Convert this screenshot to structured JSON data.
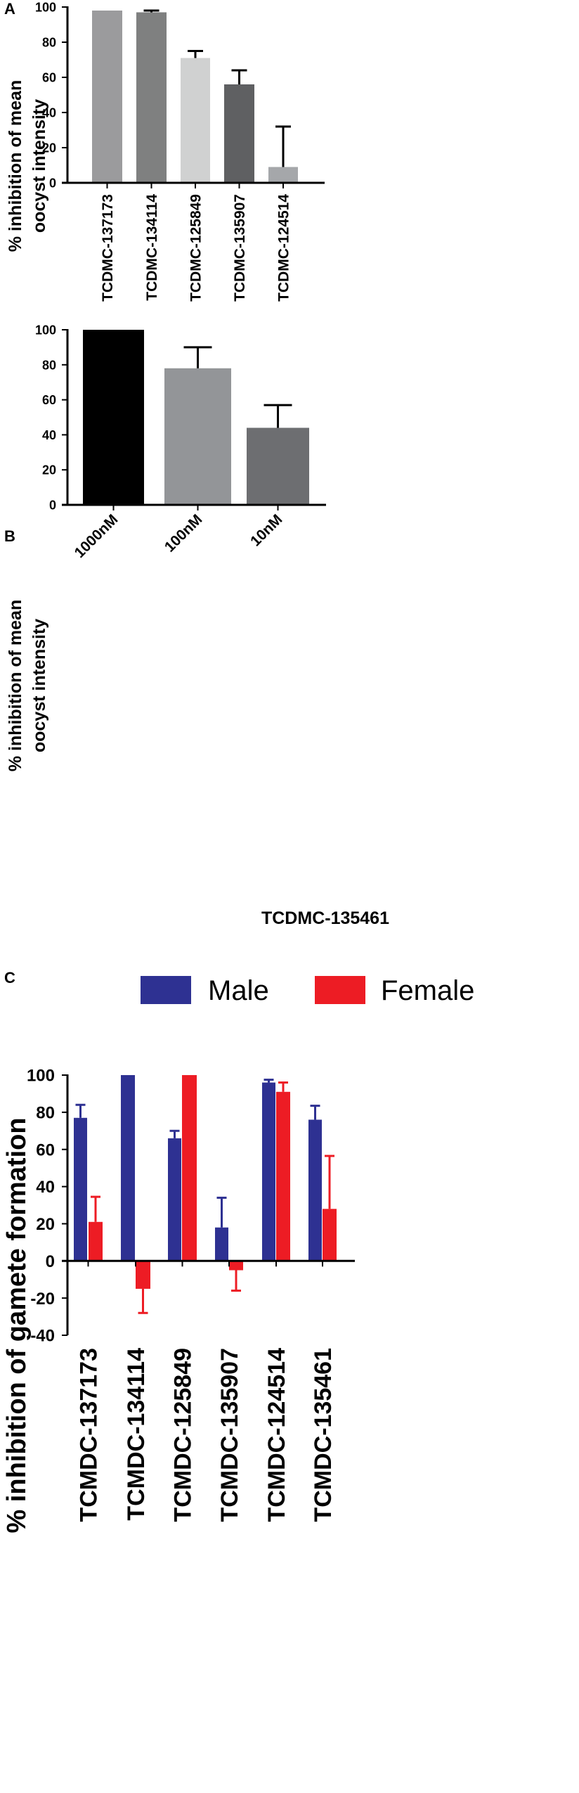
{
  "chart_data": [
    {
      "panel_label": "A",
      "type": "bar",
      "ylabel_lines": [
        "% inhibition of mean",
        "oocyst intensity"
      ],
      "xlabel": "",
      "ylim": [
        0,
        100
      ],
      "yticks": [
        0,
        20,
        40,
        60,
        80,
        100
      ],
      "categories": [
        "TCDMC-137173",
        "TCDMC-134114",
        "TCDMC-125849",
        "TCDMC-135907",
        "TCDMC-124514"
      ],
      "values": [
        98,
        97,
        71,
        56,
        9
      ],
      "errors": [
        0,
        1,
        4,
        8,
        23
      ],
      "colors": [
        "#9b9b9d",
        "#7f8080",
        "#d0d1d1",
        "#5f6062",
        "#a5a7aa"
      ]
    },
    {
      "panel_label": "B",
      "type": "bar",
      "ylabel_lines": [
        "% inhibition of mean",
        "oocyst intensity"
      ],
      "xlabel": "TCDMC-135461",
      "ylim": [
        0,
        100
      ],
      "yticks": [
        0,
        20,
        40,
        60,
        80,
        100
      ],
      "categories": [
        "1000nM",
        "100nM",
        "10nM"
      ],
      "values": [
        100,
        78,
        44
      ],
      "errors": [
        0,
        12,
        13
      ],
      "colors": [
        "#000000",
        "#939598",
        "#6d6e71"
      ]
    },
    {
      "panel_label": "C",
      "type": "bar",
      "ylabel": "% inhibition of gamete formation",
      "xlabel": "",
      "ylim": [
        -40,
        100
      ],
      "yticks": [
        -40,
        -20,
        0,
        20,
        40,
        60,
        80,
        100
      ],
      "categories": [
        "TCMDC-137173",
        "TCMDC-134114",
        "TCMDC-125849",
        "TCMDC-135907",
        "TCMDC-124514",
        "TCMDC-135461"
      ],
      "legend": {
        "placement": "top",
        "entries": [
          "Male",
          "Female"
        ]
      },
      "series": [
        {
          "name": "Male",
          "color": "#2e3192",
          "values": [
            77,
            100,
            66,
            18,
            96,
            76
          ],
          "errors": [
            7,
            0,
            4,
            16,
            1.5,
            7.5
          ]
        },
        {
          "name": "Female",
          "color": "#ed1c24",
          "values": [
            21,
            -15,
            100,
            -5,
            91,
            28
          ],
          "errors": [
            13.5,
            13,
            0,
            11,
            5,
            28.5
          ]
        }
      ]
    }
  ]
}
